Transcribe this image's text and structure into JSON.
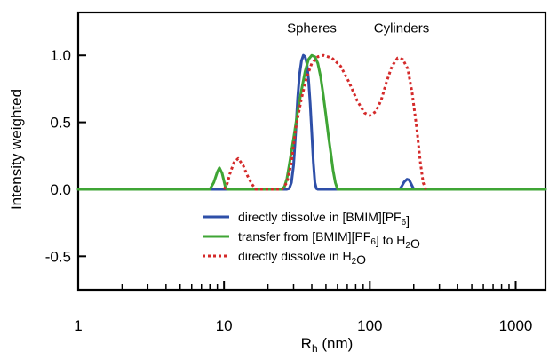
{
  "chart_data": {
    "type": "line",
    "title": "",
    "xlabel_main": "R",
    "xlabel_sub": "h",
    "xlabel_rest": " (nm)",
    "ylabel": "Intensity weighted",
    "xscale": "log",
    "xlim": [
      1,
      1600
    ],
    "ylim": [
      -0.75,
      1.32
    ],
    "xticks": [
      1,
      10,
      100,
      1000
    ],
    "xtick_labels": [
      "1",
      "10",
      "100",
      "1000"
    ],
    "yticks": [
      -0.5,
      0.0,
      0.5,
      1.0
    ],
    "ytick_labels": [
      "-0.5",
      "0.0",
      "0.5",
      "1.0"
    ],
    "grid": false,
    "legend_position": "bottom-center",
    "annotations": [
      {
        "text": "Spheres",
        "x": 40,
        "y": 1.17
      },
      {
        "text": "Cylinders",
        "x": 165,
        "y": 1.17
      }
    ],
    "series": [
      {
        "name_parts": [
          {
            "t": "directly dissolve in [BMIM][PF"
          },
          {
            "t": "6",
            "sub": true
          },
          {
            "t": "]"
          }
        ],
        "color": "#2e4fa8",
        "style": "solid",
        "points": [
          [
            1,
            0
          ],
          [
            27,
            0
          ],
          [
            28,
            0.005
          ],
          [
            29,
            0.05
          ],
          [
            30,
            0.18
          ],
          [
            31,
            0.42
          ],
          [
            32,
            0.68
          ],
          [
            33,
            0.86
          ],
          [
            34,
            0.96
          ],
          [
            35,
            1.0
          ],
          [
            36,
            0.99
          ],
          [
            37,
            0.94
          ],
          [
            38,
            0.82
          ],
          [
            39,
            0.64
          ],
          [
            40,
            0.42
          ],
          [
            41,
            0.2
          ],
          [
            42,
            0.05
          ],
          [
            43,
            0.005
          ],
          [
            44,
            0
          ],
          [
            160,
            0
          ],
          [
            165,
            0.02
          ],
          [
            172,
            0.055
          ],
          [
            180,
            0.075
          ],
          [
            186,
            0.07
          ],
          [
            192,
            0.04
          ],
          [
            198,
            0.01
          ],
          [
            203,
            0
          ],
          [
            1600,
            0
          ]
        ]
      },
      {
        "name_parts": [
          {
            "t": "transfer from [BMIM][PF"
          },
          {
            "t": "6",
            "sub": true
          },
          {
            "t": "] to H"
          },
          {
            "t": "2",
            "sub": true
          },
          {
            "t": "O"
          }
        ],
        "color": "#3fa535",
        "style": "solid",
        "points": [
          [
            1,
            0
          ],
          [
            8.0,
            0
          ],
          [
            8.5,
            0.05
          ],
          [
            9.0,
            0.13
          ],
          [
            9.3,
            0.16
          ],
          [
            9.7,
            0.12
          ],
          [
            10.2,
            0.02
          ],
          [
            10.5,
            0
          ],
          [
            25,
            0
          ],
          [
            26,
            0.02
          ],
          [
            27,
            0.08
          ],
          [
            28,
            0.18
          ],
          [
            30,
            0.38
          ],
          [
            32,
            0.58
          ],
          [
            34,
            0.74
          ],
          [
            36,
            0.88
          ],
          [
            38,
            0.97
          ],
          [
            40,
            1.0
          ],
          [
            42,
            0.99
          ],
          [
            44,
            0.94
          ],
          [
            46,
            0.84
          ],
          [
            48,
            0.7
          ],
          [
            50,
            0.55
          ],
          [
            52,
            0.4
          ],
          [
            54,
            0.27
          ],
          [
            56,
            0.14
          ],
          [
            58,
            0.05
          ],
          [
            60,
            0
          ],
          [
            1600,
            0
          ]
        ]
      },
      {
        "name_parts": [
          {
            "t": "directly dissolve in H"
          },
          {
            "t": "2",
            "sub": true
          },
          {
            "t": "O"
          }
        ],
        "color": "#d42a2a",
        "style": "dotted",
        "points": [
          [
            10,
            0
          ],
          [
            10.5,
            0.04
          ],
          [
            11,
            0.12
          ],
          [
            11.7,
            0.2
          ],
          [
            12.5,
            0.23
          ],
          [
            13.5,
            0.18
          ],
          [
            14.5,
            0.1
          ],
          [
            15.5,
            0.04
          ],
          [
            16.5,
            0
          ],
          [
            25,
            0
          ],
          [
            27,
            0.05
          ],
          [
            29,
            0.2
          ],
          [
            31,
            0.45
          ],
          [
            34,
            0.68
          ],
          [
            37,
            0.84
          ],
          [
            40,
            0.94
          ],
          [
            44,
            0.99
          ],
          [
            48,
            1.0
          ],
          [
            55,
            0.98
          ],
          [
            63,
            0.92
          ],
          [
            72,
            0.8
          ],
          [
            82,
            0.66
          ],
          [
            92,
            0.57
          ],
          [
            100,
            0.55
          ],
          [
            110,
            0.58
          ],
          [
            120,
            0.67
          ],
          [
            130,
            0.8
          ],
          [
            142,
            0.92
          ],
          [
            155,
            0.98
          ],
          [
            168,
            0.97
          ],
          [
            182,
            0.9
          ],
          [
            195,
            0.72
          ],
          [
            210,
            0.45
          ],
          [
            222,
            0.2
          ],
          [
            232,
            0.05
          ],
          [
            242,
            0
          ]
        ]
      }
    ]
  }
}
